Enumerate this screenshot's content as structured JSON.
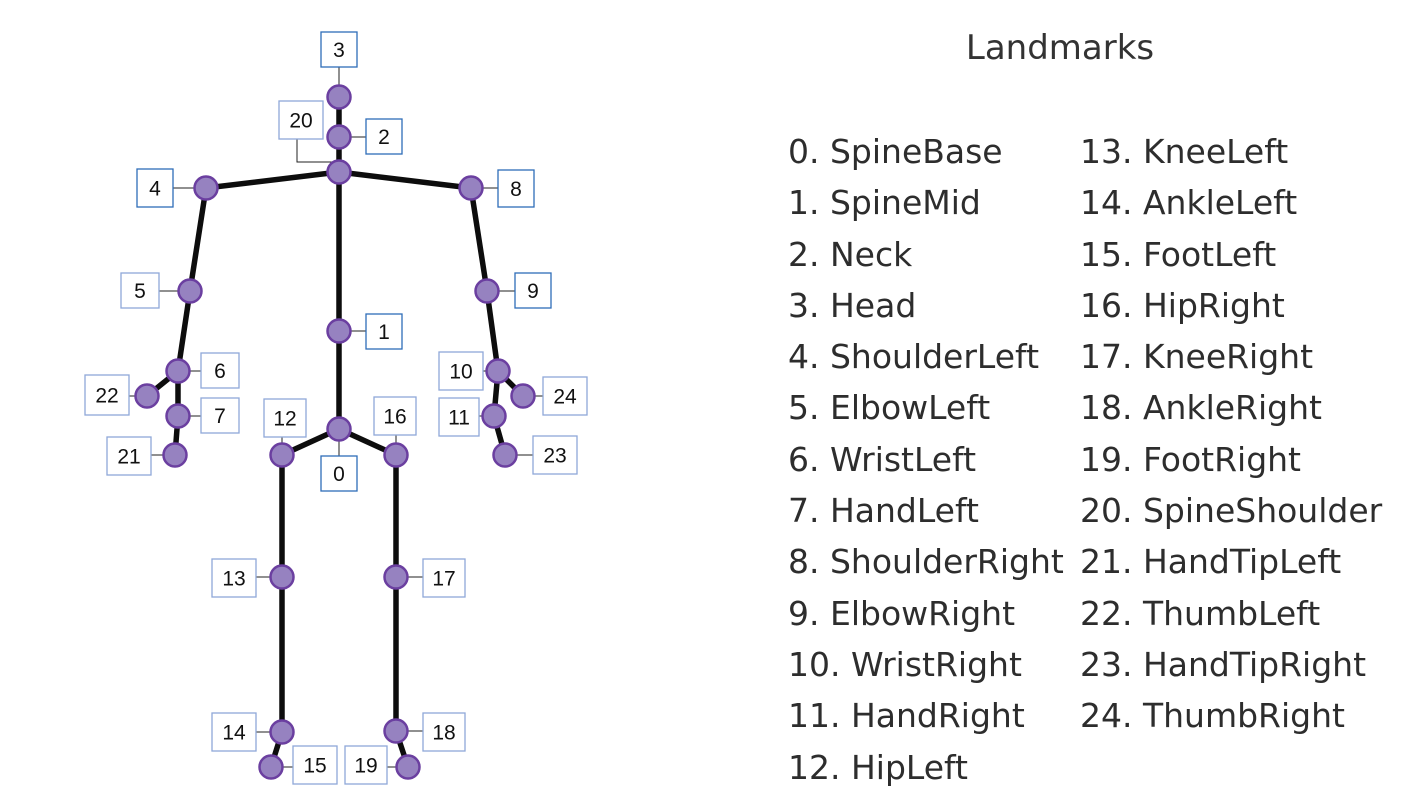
{
  "title": "Landmarks",
  "colors": {
    "bone": "#0d0d0d",
    "joint_fill": "#9682c0",
    "joint_stroke": "#6b3fa0",
    "box_dark": "#2e6db8",
    "box_light": "#8fa8d8"
  },
  "landmarks": [
    "0. SpineBase",
    "1. SpineMid",
    "2. Neck",
    "3. Head",
    "4. ShoulderLeft",
    "5. ElbowLeft",
    "6. WristLeft",
    "7. HandLeft",
    "8. ShoulderRight",
    "9. ElbowRight",
    "10. WristRight",
    "11. HandRight",
    "12. HipLeft",
    "13. KneeLeft",
    "14. AnkleLeft",
    "15. FootLeft",
    "16. HipRight",
    "17. KneeRight",
    "18. AnkleRight",
    "19. FootRight",
    "20. SpineShoulder",
    "21. HandTipLeft",
    "22. ThumbLeft",
    "23. HandTipRight",
    "24. ThumbRight"
  ],
  "joint_labels": [
    "0",
    "1",
    "2",
    "3",
    "4",
    "5",
    "6",
    "7",
    "8",
    "9",
    "10",
    "11",
    "12",
    "13",
    "14",
    "15",
    "16",
    "17",
    "18",
    "19",
    "20",
    "21",
    "22",
    "23",
    "24"
  ]
}
